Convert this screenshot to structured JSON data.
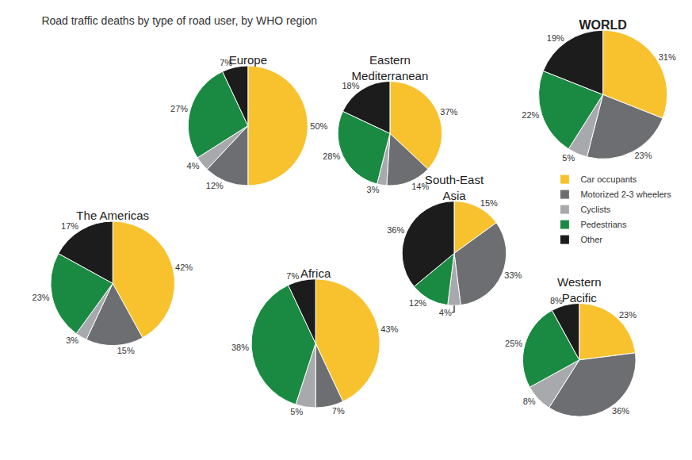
{
  "chart_data": {
    "type": "pie",
    "title": "Road traffic deaths by type of road user, by WHO region",
    "categories": [
      "Car occupants",
      "Motorized 2-3 wheelers",
      "Cyclists",
      "Pedestrians",
      "Other"
    ],
    "colors": [
      "#f8c22e",
      "#6d6e71",
      "#a7a9ac",
      "#1a8a43",
      "#1c1c1c"
    ],
    "legend": "right",
    "data_labels": true,
    "series": [
      {
        "name": "WORLD",
        "values": [
          31,
          23,
          5,
          22,
          19
        ],
        "value_labels": [
          "31%",
          "23%",
          "5%",
          "22%",
          "19%"
        ]
      },
      {
        "name": "Europe",
        "values": [
          50,
          12,
          4,
          27,
          7
        ],
        "value_labels": [
          "50%",
          "12%",
          "4%",
          "27%",
          "7%"
        ]
      },
      {
        "name": "Eastern Mediterranean",
        "values": [
          37,
          14,
          3,
          28,
          18
        ],
        "value_labels": [
          "37%",
          "14%",
          "3%",
          "28%",
          "18%"
        ]
      },
      {
        "name": "South-East Asia",
        "values": [
          15,
          33,
          4,
          12,
          36
        ],
        "value_labels": [
          "15%",
          "33%",
          "4%",
          "12%",
          "36%"
        ]
      },
      {
        "name": "The Americas",
        "values": [
          42,
          15,
          3,
          23,
          17
        ],
        "value_labels": [
          "42%",
          "15%",
          "3%",
          "23%",
          "17%"
        ]
      },
      {
        "name": "Africa",
        "values": [
          43,
          7,
          5,
          38,
          7
        ],
        "value_labels": [
          "43%",
          "7%",
          "5%",
          "38%",
          "7%"
        ]
      },
      {
        "name": "Western Pacific",
        "values": [
          23,
          36,
          8,
          25,
          8
        ],
        "value_labels": [
          "23%",
          "36%",
          "8%",
          "25%",
          "8%"
        ]
      }
    ]
  }
}
